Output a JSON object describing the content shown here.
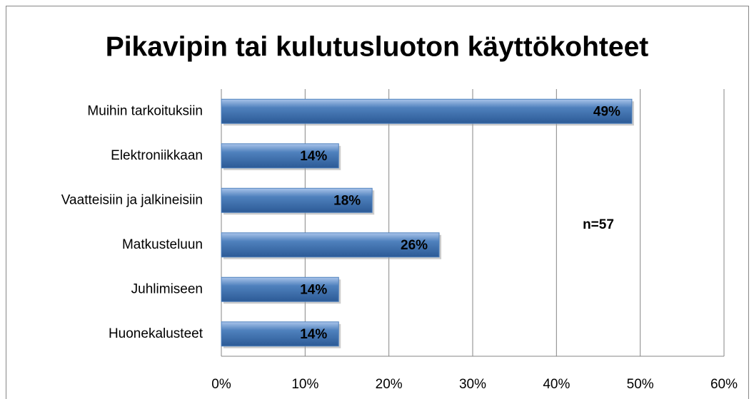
{
  "chart_data": {
    "type": "bar",
    "orientation": "horizontal",
    "title": "Pikavipin tai kulutusluoton käyttökohteet",
    "annotation": "n=57",
    "categories": [
      "Muihin tarkoituksiin",
      "Elektroniikkaan",
      "Vaatteisiin ja jalkineisiin",
      "Matkusteluun",
      "Juhlimiseen",
      "Huonekalusteet"
    ],
    "values": [
      49,
      14,
      18,
      26,
      14,
      14
    ],
    "value_labels": [
      "49%",
      "14%",
      "18%",
      "26%",
      "14%",
      "14%"
    ],
    "color": "#4f81bd",
    "xlim": [
      0,
      60
    ],
    "xticks": [
      {
        "value": 0,
        "label": "0%"
      },
      {
        "value": 10,
        "label": "10%"
      },
      {
        "value": 20,
        "label": "20%"
      },
      {
        "value": 30,
        "label": "30%"
      },
      {
        "value": 40,
        "label": "40%"
      },
      {
        "value": 50,
        "label": "50%"
      },
      {
        "value": 60,
        "label": "60%"
      }
    ],
    "grid": true
  }
}
